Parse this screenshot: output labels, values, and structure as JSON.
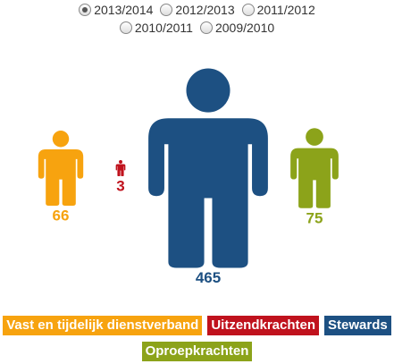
{
  "chart_data": {
    "type": "pictogram",
    "periods": [
      "2013/2014",
      "2012/2013",
      "2011/2012",
      "2010/2011",
      "2009/2010"
    ],
    "selected_period": 0,
    "categories": [
      "Vast en tijdelijk dienstverband",
      "Uitzendkrachten",
      "Stewards",
      "Oproepkrachten"
    ],
    "values": [
      66,
      3,
      465,
      75
    ],
    "colors": [
      "#f7a30f",
      "#c0121d",
      "#1d5082",
      "#8ca31a"
    ]
  }
}
